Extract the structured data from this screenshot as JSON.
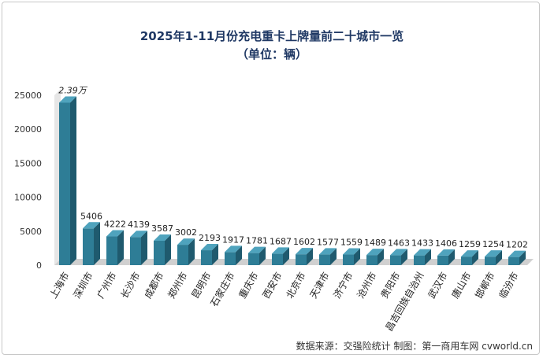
{
  "chart_data": {
    "type": "bar",
    "title": "2025年1-11月份充电重卡上牌量前二十城市一览",
    "subtitle": "（单位：辆）",
    "categories": [
      "上海市",
      "深圳市",
      "广州市",
      "长沙市",
      "成都市",
      "郑州市",
      "昆明市",
      "石家庄市",
      "重庆市",
      "西安市",
      "北京市",
      "天津市",
      "济宁市",
      "沧州市",
      "贵阳市",
      "昌吉回族自治州",
      "武汉市",
      "唐山市",
      "邯郸市",
      "临汾市"
    ],
    "values": [
      23900,
      5406,
      4222,
      4139,
      3587,
      3002,
      2193,
      1917,
      1781,
      1687,
      1602,
      1577,
      1559,
      1489,
      1463,
      1433,
      1406,
      1259,
      1254,
      1202
    ],
    "data_labels": [
      "2.39万",
      "5406",
      "4222",
      "4139",
      "3587",
      "3002",
      "2193",
      "1917",
      "1781",
      "1687",
      "1602",
      "1577",
      "1559",
      "1489",
      "1463",
      "1433",
      "1406",
      "1259",
      "1254",
      "1202"
    ],
    "yticks": [
      "0",
      "5000",
      "10000",
      "15000",
      "20000",
      "25000"
    ],
    "ylim": [
      0,
      25000
    ],
    "xlabel": "",
    "ylabel": "",
    "legend": "none",
    "grid": false,
    "source_note": "数据来源：交强险统计   制图：第一商用车网 cvworld.cn",
    "colors": {
      "bar_front": "#2e7d96",
      "bar_side": "#1f5a6e",
      "bar_top": "#4fa3bd",
      "wall": "#e6e6e6",
      "floor": "#d0d0d0"
    }
  }
}
